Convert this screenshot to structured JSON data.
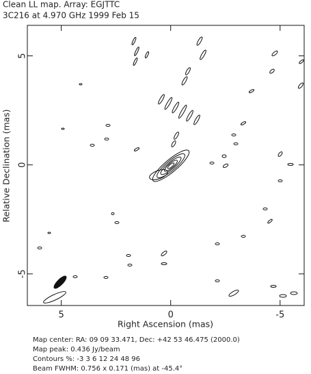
{
  "chart_data": {
    "type": "contour",
    "title": "Clean LL map.  Array: EGJTTC",
    "subtitle": "3C216 at 4.970 GHz 1999 Feb 15",
    "x_label": "Right Ascension  (mas)",
    "y_label": "Relative Declination  (mas)",
    "xlim": [
      6.55,
      -6.1
    ],
    "ylim": [
      -6.45,
      6.4
    ],
    "xticks": [
      5,
      0,
      -5
    ],
    "yticks": [
      -5,
      0,
      5
    ],
    "notes": [
      "Map center:  RA: 09 09 33.471,  Dec: +42 53 46.475 (2000.0)",
      "Map peak: 0.436 Jy/beam",
      "Contours %: -3 3 6 12 24 48 96",
      "Beam FWHM: 0.756 x 0.171 (mas) at -45.4°"
    ]
  }
}
